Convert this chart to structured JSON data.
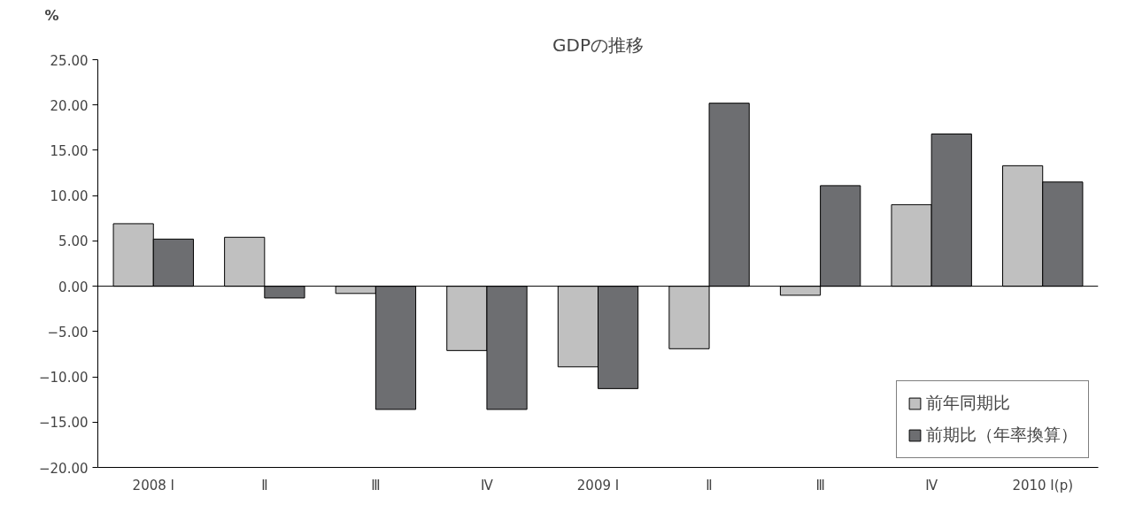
{
  "chart_data": {
    "type": "bar",
    "title": "GDPの推移",
    "ylabel": "%",
    "categories": [
      "2008 Ⅰ",
      "Ⅱ",
      "Ⅲ",
      "Ⅳ",
      "2009 Ⅰ",
      "Ⅱ",
      "Ⅲ",
      "Ⅳ",
      "2010 Ⅰ(p)"
    ],
    "series": [
      {
        "name": "前年同期比",
        "color": "#c0c0c0",
        "values": [
          6.9,
          5.4,
          -0.8,
          -7.1,
          -8.9,
          -6.9,
          -1.0,
          9.0,
          13.3
        ]
      },
      {
        "name": "前期比（年率換算）",
        "color": "#6d6e71",
        "values": [
          5.2,
          -1.3,
          -13.6,
          -13.6,
          -11.3,
          20.2,
          11.1,
          16.8,
          11.5
        ]
      }
    ],
    "ylim": [
      -20,
      25
    ],
    "yticks": [
      {
        "value": -20,
        "label": "−20.00"
      },
      {
        "value": -15,
        "label": "−15.00"
      },
      {
        "value": -10,
        "label": "−10.00"
      },
      {
        "value": -5,
        "label": "−5.00"
      },
      {
        "value": 0,
        "label": "0.00"
      },
      {
        "value": 5,
        "label": "5.00"
      },
      {
        "value": 10,
        "label": "10.00"
      },
      {
        "value": 15,
        "label": "15.00"
      },
      {
        "value": 20,
        "label": "20.00"
      },
      {
        "value": 25,
        "label": "25.00"
      }
    ],
    "ref_lines": [
      {
        "axis": "y",
        "value": 0,
        "color": "#000000"
      }
    ],
    "grid": false,
    "legend": "bottom right"
  }
}
